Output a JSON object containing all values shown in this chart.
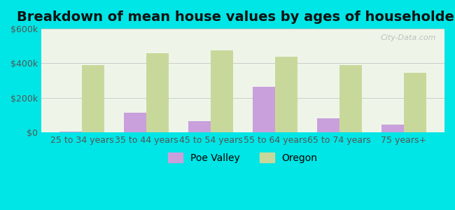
{
  "title": "Breakdown of mean house values by ages of householders",
  "categories": [
    "25 to 34 years",
    "35 to 44 years",
    "45 to 54 years",
    "55 to 64 years",
    "65 to 74 years",
    "75 years+"
  ],
  "poe_valley": [
    5000,
    115000,
    65000,
    265000,
    80000,
    45000
  ],
  "oregon": [
    390000,
    460000,
    475000,
    440000,
    388000,
    345000
  ],
  "poe_valley_color": "#c9a0dc",
  "oregon_color": "#c8d89a",
  "background_outer": "#00e5e5",
  "background_inner": "#eef5e8",
  "bar_width": 0.35,
  "ylim": [
    0,
    600000
  ],
  "yticks": [
    0,
    200000,
    400000,
    600000
  ],
  "ytick_labels": [
    "$0",
    "$200k",
    "$400k",
    "$600k"
  ],
  "legend_labels": [
    "Poe Valley",
    "Oregon"
  ],
  "watermark": "City-Data.com",
  "title_fontsize": 14,
  "tick_fontsize": 9,
  "legend_fontsize": 10
}
